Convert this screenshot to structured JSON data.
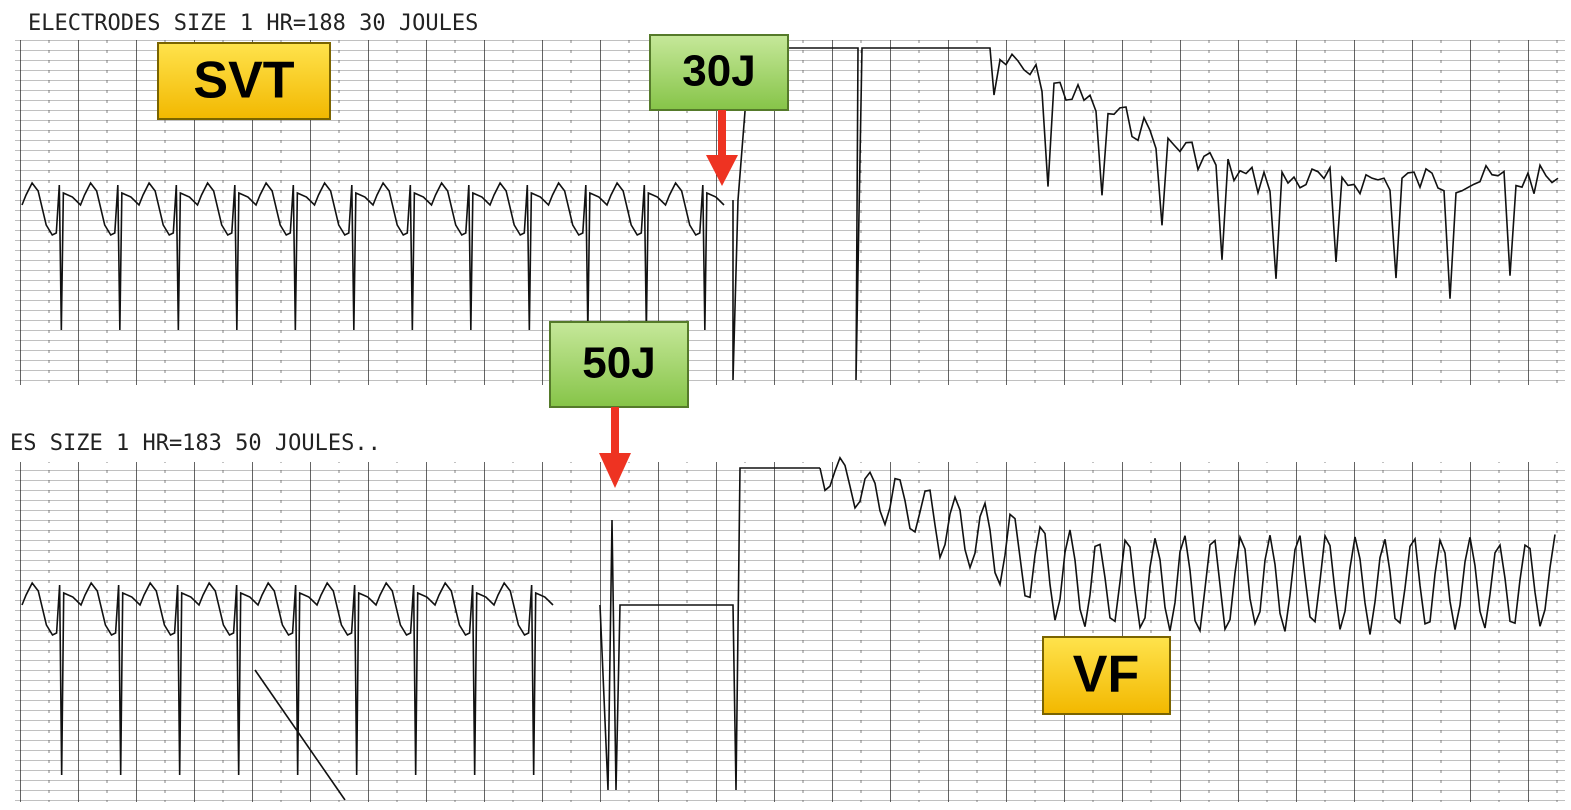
{
  "strips": [
    {
      "header": "ELECTRODES  SIZE 1  HR=188  30 JOULES"
    },
    {
      "header": "ES  SIZE 1  HR=183  50 JOULES.."
    }
  ],
  "labels": {
    "svt": "SVT",
    "shock_1": "30J",
    "shock_2": "50J",
    "vf": "VF"
  }
}
